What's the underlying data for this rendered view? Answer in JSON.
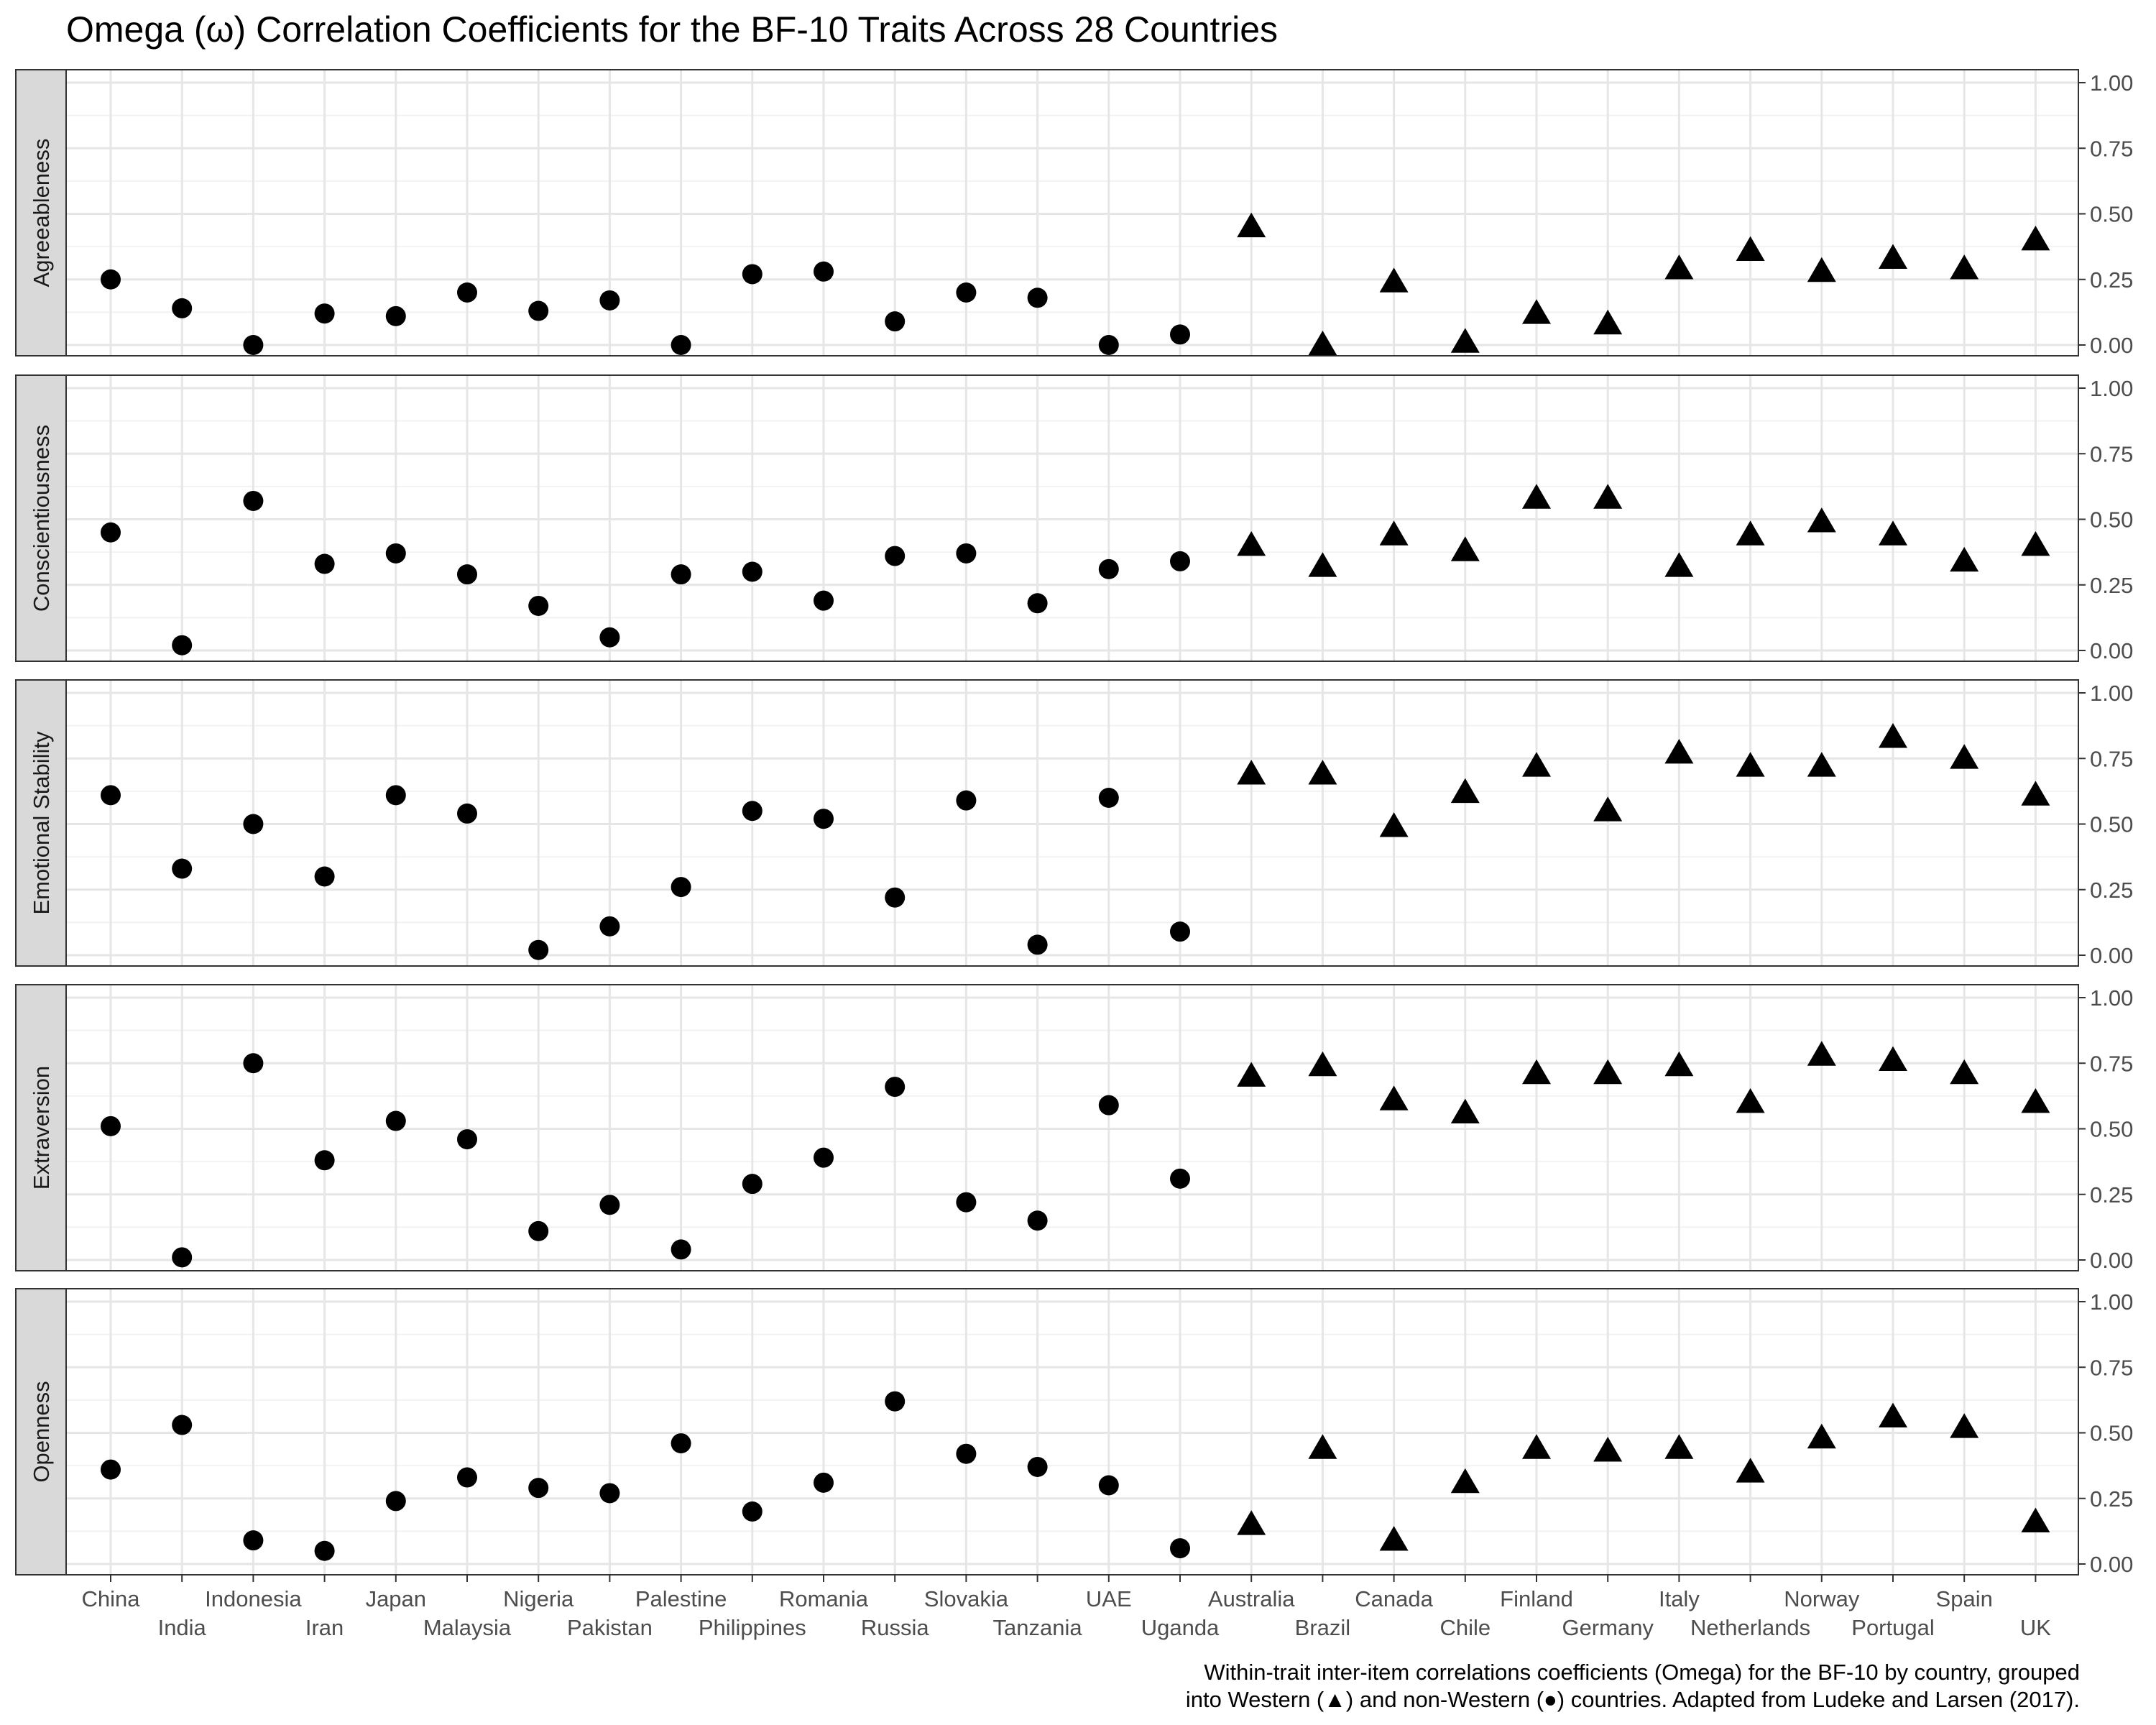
{
  "chart_data": {
    "type": "scatter",
    "title": "Omega (ω) Correlation Coefficients for the BF-10 Traits Across 28 Countries",
    "caption": [
      "Within-trait inter-item correlations coefficients (Omega) for the BF-10 by country, grouped",
      "into Western (▲) and non-Western (●) countries. Adapted from Ludeke and Larsen (2017)."
    ],
    "ylim": [
      0,
      1
    ],
    "y_ticks": [
      "0.00",
      "0.25",
      "0.50",
      "0.75",
      "1.00"
    ],
    "y_tick_values": [
      0,
      0.25,
      0.5,
      0.75,
      1
    ],
    "y_axis_position": "right",
    "grid": true,
    "countries": [
      "China",
      "India",
      "Indonesia",
      "Iran",
      "Japan",
      "Malaysia",
      "Nigeria",
      "Pakistan",
      "Palestine",
      "Philippines",
      "Romania",
      "Russia",
      "Slovakia",
      "Tanzania",
      "UAE",
      "Uganda",
      "Australia",
      "Brazil",
      "Canada",
      "Chile",
      "Finland",
      "Germany",
      "Italy",
      "Netherlands",
      "Norway",
      "Portugal",
      "Spain",
      "UK"
    ],
    "western": [
      false,
      false,
      false,
      false,
      false,
      false,
      false,
      false,
      false,
      false,
      false,
      false,
      false,
      false,
      false,
      false,
      true,
      true,
      true,
      true,
      true,
      true,
      true,
      true,
      true,
      true,
      true,
      true
    ],
    "panels": [
      {
        "name": "Agreeableness",
        "values": [
          0.25,
          0.14,
          0.0,
          0.12,
          0.11,
          0.2,
          0.13,
          0.17,
          0.0,
          0.27,
          0.28,
          0.09,
          0.2,
          0.18,
          0.0,
          0.04,
          0.45,
          0.0,
          0.24,
          0.01,
          0.12,
          0.08,
          0.29,
          0.36,
          0.28,
          0.33,
          0.29,
          0.4
        ]
      },
      {
        "name": "Conscientiousness",
        "values": [
          0.45,
          0.02,
          0.57,
          0.33,
          0.37,
          0.29,
          0.17,
          0.05,
          0.29,
          0.3,
          0.19,
          0.36,
          0.37,
          0.18,
          0.31,
          0.34,
          0.4,
          0.32,
          0.44,
          0.38,
          0.58,
          0.58,
          0.32,
          0.44,
          0.49,
          0.44,
          0.34,
          0.4
        ]
      },
      {
        "name": "Emotional Stability",
        "values": [
          0.61,
          0.33,
          0.5,
          0.3,
          0.61,
          0.54,
          0.02,
          0.11,
          0.26,
          0.55,
          0.52,
          0.22,
          0.59,
          0.04,
          0.6,
          0.09,
          0.69,
          0.69,
          0.49,
          0.62,
          0.72,
          0.55,
          0.77,
          0.72,
          0.72,
          0.83,
          0.75,
          0.61
        ]
      },
      {
        "name": "Extraversion",
        "values": [
          0.51,
          0.01,
          0.75,
          0.38,
          0.53,
          0.46,
          0.11,
          0.21,
          0.04,
          0.29,
          0.39,
          0.66,
          0.22,
          0.15,
          0.59,
          0.31,
          0.7,
          0.74,
          0.61,
          0.56,
          0.71,
          0.71,
          0.74,
          0.6,
          0.78,
          0.76,
          0.71,
          0.6
        ]
      },
      {
        "name": "Openness",
        "values": [
          0.36,
          0.53,
          0.09,
          0.05,
          0.24,
          0.33,
          0.29,
          0.27,
          0.46,
          0.2,
          0.31,
          0.62,
          0.42,
          0.37,
          0.3,
          0.06,
          0.15,
          0.44,
          0.09,
          0.31,
          0.44,
          0.43,
          0.44,
          0.35,
          0.48,
          0.56,
          0.52,
          0.16
        ]
      }
    ]
  }
}
